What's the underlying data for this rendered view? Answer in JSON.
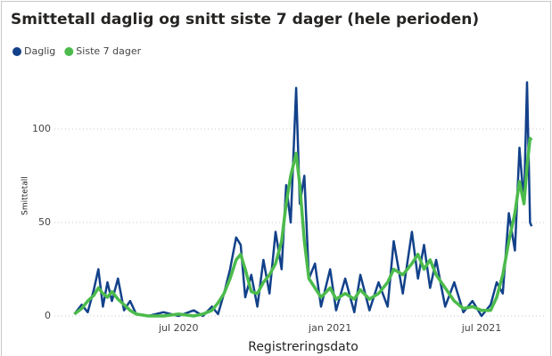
{
  "chart_data": {
    "type": "line",
    "title": "Smittetall daglig og snitt siste 7 dager (hele perioden)",
    "xlabel": "Registreringsdato",
    "ylabel": "Smittetall",
    "x": [
      2020.156,
      2020.18,
      2020.2,
      2020.22,
      2020.235,
      2020.25,
      2020.265,
      2020.28,
      2020.3,
      2020.32,
      2020.34,
      2020.36,
      2020.4,
      2020.45,
      2020.5,
      2020.55,
      2020.58,
      2020.61,
      2020.63,
      2020.65,
      2020.67,
      2020.69,
      2020.705,
      2020.72,
      2020.74,
      2020.76,
      2020.78,
      2020.8,
      2020.82,
      2020.84,
      2020.855,
      2020.87,
      2020.888,
      2020.9,
      2020.915,
      2020.93,
      2020.95,
      2020.97,
      2021.0,
      2021.02,
      2021.05,
      2021.08,
      2021.1,
      2021.13,
      2021.16,
      2021.19,
      2021.21,
      2021.24,
      2021.27,
      2021.29,
      2021.31,
      2021.33,
      2021.35,
      2021.38,
      2021.41,
      2021.44,
      2021.47,
      2021.5,
      2021.53,
      2021.55,
      2021.57,
      2021.59,
      2021.61,
      2021.625,
      2021.64,
      2021.65,
      2021.66,
      2021.665
    ],
    "series": [
      {
        "name": "Daglig",
        "color": "#12418a",
        "values": [
          1,
          6,
          2,
          14,
          25,
          5,
          18,
          8,
          20,
          3,
          8,
          1,
          0,
          2,
          0,
          3,
          0,
          5,
          1,
          12,
          25,
          42,
          38,
          10,
          22,
          5,
          30,
          12,
          45,
          25,
          70,
          50,
          122,
          60,
          75,
          20,
          28,
          5,
          25,
          3,
          20,
          2,
          22,
          3,
          18,
          5,
          40,
          12,
          45,
          20,
          38,
          15,
          30,
          5,
          18,
          2,
          8,
          0,
          6,
          18,
          12,
          55,
          35,
          90,
          60,
          125,
          50,
          48
        ]
      },
      {
        "name": "Siste 7 dager",
        "color": "#4cbb4c",
        "values": [
          1,
          4,
          8,
          11,
          15,
          12,
          10,
          13,
          9,
          6,
          3,
          1,
          0,
          0,
          1,
          0,
          1,
          3,
          7,
          12,
          20,
          30,
          33,
          25,
          13,
          12,
          18,
          22,
          28,
          40,
          60,
          75,
          87,
          70,
          40,
          20,
          15,
          10,
          15,
          9,
          12,
          9,
          14,
          9,
          12,
          18,
          25,
          22,
          28,
          33,
          25,
          30,
          22,
          15,
          8,
          4,
          5,
          3,
          3,
          10,
          22,
          40,
          55,
          72,
          60,
          80,
          95,
          94
        ]
      }
    ],
    "xlim": [
      2020.09,
      2021.706
    ],
    "xticks": [
      {
        "value": 2020.5,
        "label": "jul 2020"
      },
      {
        "value": 2021.0,
        "label": "jan 2021"
      },
      {
        "value": 2021.5,
        "label": "jul 2021"
      }
    ],
    "ylim": [
      0,
      130
    ],
    "yticks": [
      0,
      50,
      100
    ],
    "grid": true,
    "legend": "top-left"
  }
}
